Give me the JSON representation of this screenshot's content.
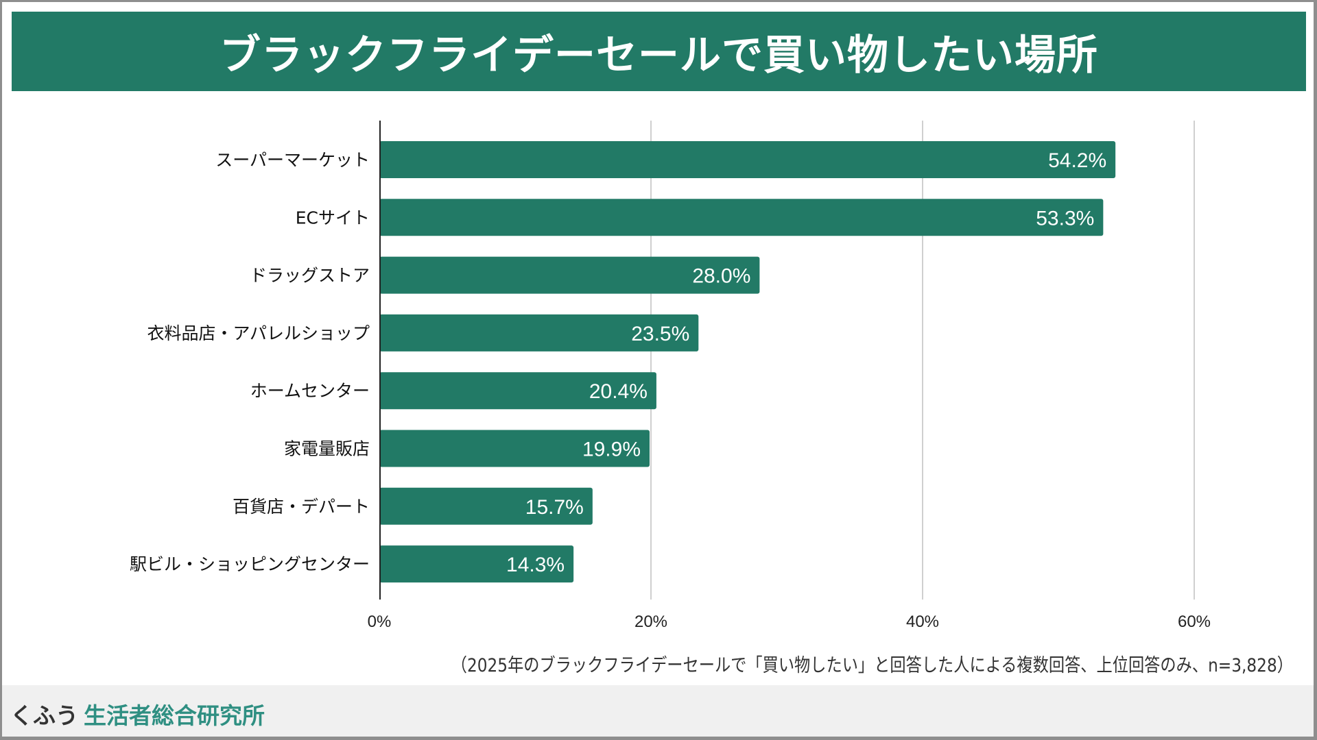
{
  "title": "ブラックフライデーセールで買い物したい場所",
  "colors": {
    "bar": "#227a66",
    "title_bg": "#227a66",
    "grid": "#cfcfcf",
    "axis": "#222222",
    "brand_accent": "#2f8f82"
  },
  "chart_data": {
    "type": "bar",
    "orientation": "horizontal",
    "title": "ブラックフライデーセールで買い物したい場所",
    "categories": [
      "スーパーマーケット",
      "ECサイト",
      "ドラッグストア",
      "衣料品店・アパレルショップ",
      "ホームセンター",
      "家電量販店",
      "百貨店・デパート",
      "駅ビル・ショッピングセンター"
    ],
    "values": [
      54.2,
      53.3,
      28.0,
      23.5,
      20.4,
      19.9,
      15.7,
      14.3
    ],
    "value_labels": [
      "54.2%",
      "53.3%",
      "28.0%",
      "23.5%",
      "20.4%",
      "19.9%",
      "15.7%",
      "14.3%"
    ],
    "xlabel": "",
    "ylabel": "",
    "xlim": [
      0,
      60
    ],
    "x_ticks": [
      0,
      20,
      40,
      60
    ],
    "x_tick_labels": [
      "0%",
      "20%",
      "40%",
      "60%"
    ],
    "grid": true,
    "legend": "none"
  },
  "footnote": "（2025年のブラックフライデーセールで「買い物したい」と回答した人による複数回答、上位回答のみ、n=3,828）",
  "footer": {
    "brand_part1": "くふう",
    "brand_part2": "生活者総合研究所"
  }
}
